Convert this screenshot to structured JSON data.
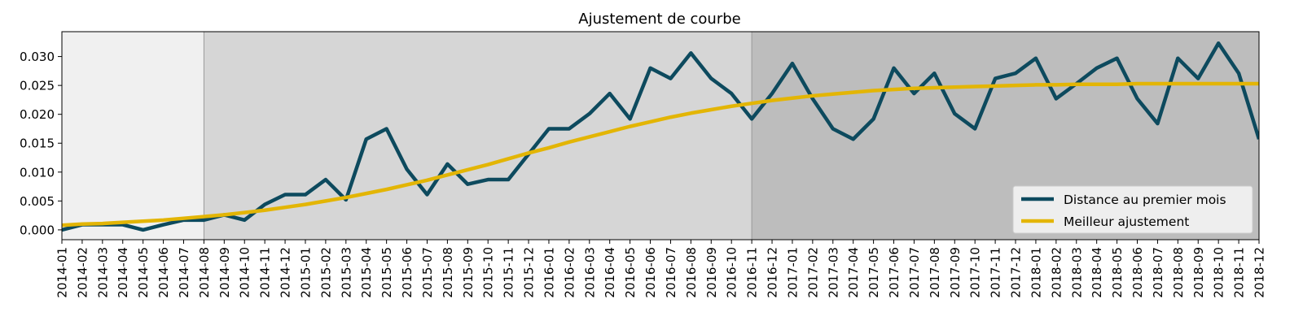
{
  "chart_data": {
    "type": "line",
    "title": "Ajustement de courbe",
    "xlabel": "",
    "ylabel": "",
    "x": [
      "2014-01",
      "2014-02",
      "2014-03",
      "2014-04",
      "2014-05",
      "2014-06",
      "2014-07",
      "2014-08",
      "2014-09",
      "2014-10",
      "2014-11",
      "2014-12",
      "2015-01",
      "2015-02",
      "2015-03",
      "2015-04",
      "2015-05",
      "2015-06",
      "2015-07",
      "2015-08",
      "2015-09",
      "2015-10",
      "2015-11",
      "2015-12",
      "2016-01",
      "2016-02",
      "2016-03",
      "2016-04",
      "2016-05",
      "2016-06",
      "2016-07",
      "2016-08",
      "2016-09",
      "2016-10",
      "2016-11",
      "2016-12",
      "2017-01",
      "2017-02",
      "2017-03",
      "2017-04",
      "2017-05",
      "2017-06",
      "2017-07",
      "2017-08",
      "2017-09",
      "2017-10",
      "2017-11",
      "2017-12",
      "2018-01",
      "2018-02",
      "2018-03",
      "2018-04",
      "2018-05",
      "2018-06",
      "2018-07",
      "2018-08",
      "2018-09",
      "2018-10",
      "2018-11",
      "2018-12"
    ],
    "ylim": [
      -0.0017,
      0.0343
    ],
    "yticks": [
      0.0,
      0.005,
      0.01,
      0.015,
      0.02,
      0.025,
      0.03
    ],
    "ytick_labels": [
      "0.000",
      "0.005",
      "0.010",
      "0.015",
      "0.020",
      "0.025",
      "0.030"
    ],
    "grid": false,
    "legend_position": "bottom-right",
    "shaded_periods": [
      {
        "start": "2014-01",
        "end": "2014-08",
        "color": "#f0f0f0"
      },
      {
        "start": "2014-08",
        "end": "2016-11",
        "color": "#d6d6d6"
      },
      {
        "start": "2016-11",
        "end": "2018-12",
        "color": "#bdbdbd"
      }
    ],
    "series": [
      {
        "name": "Distance au premier mois",
        "color": "#0d4a5e",
        "values": [
          0.0,
          0.0009,
          0.0009,
          0.0009,
          0.0,
          0.0009,
          0.0017,
          0.0017,
          0.0026,
          0.0017,
          0.0044,
          0.0061,
          0.0061,
          0.0087,
          0.0052,
          0.0157,
          0.0175,
          0.0105,
          0.0061,
          0.0114,
          0.0079,
          0.0087,
          0.0087,
          0.0131,
          0.0175,
          0.0175,
          0.0201,
          0.0236,
          0.0192,
          0.028,
          0.0262,
          0.0306,
          0.0262,
          0.0236,
          0.0192,
          0.0236,
          0.0288,
          0.0227,
          0.0175,
          0.0157,
          0.0192,
          0.028,
          0.0236,
          0.0271,
          0.0201,
          0.0175,
          0.0262,
          0.0271,
          0.0297,
          0.0227,
          0.0253,
          0.028,
          0.0297,
          0.0227,
          0.0184,
          0.0297,
          0.0262,
          0.0323,
          0.0271,
          0.0157
        ]
      },
      {
        "name": "Meilleur ajustement",
        "color": "#e3b505",
        "values": [
          0.0008,
          0.001,
          0.0011,
          0.0013,
          0.0015,
          0.0017,
          0.002,
          0.0023,
          0.0026,
          0.003,
          0.0034,
          0.0039,
          0.0044,
          0.005,
          0.0056,
          0.0063,
          0.007,
          0.0078,
          0.0086,
          0.0095,
          0.0104,
          0.0113,
          0.0123,
          0.0133,
          0.0142,
          0.0152,
          0.0161,
          0.017,
          0.0179,
          0.0187,
          0.0195,
          0.0202,
          0.0208,
          0.0214,
          0.0219,
          0.0224,
          0.0228,
          0.0232,
          0.0235,
          0.0238,
          0.0241,
          0.0243,
          0.0245,
          0.0246,
          0.0247,
          0.0248,
          0.0249,
          0.025,
          0.0251,
          0.0251,
          0.0252,
          0.0252,
          0.0252,
          0.0253,
          0.0253,
          0.0253,
          0.0253,
          0.0253,
          0.0253,
          0.0253
        ]
      }
    ]
  }
}
